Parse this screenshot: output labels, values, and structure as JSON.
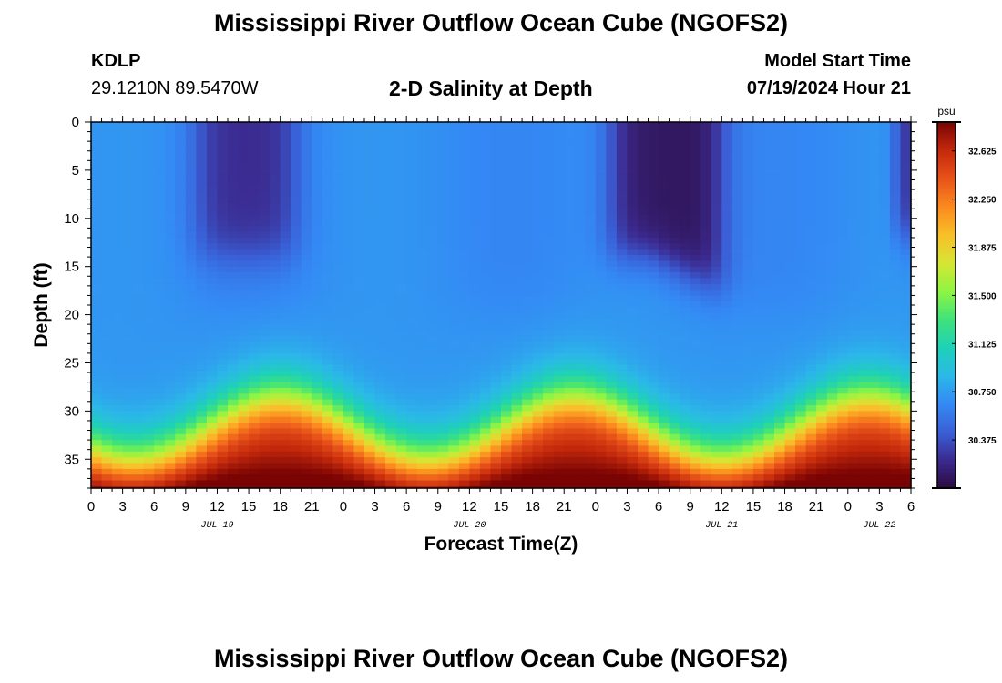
{
  "header": {
    "title": "Mississippi River Outflow Ocean Cube (NGOFS2)",
    "station_id": "KDLP",
    "station_coords": "29.1210N  89.5470W",
    "subtitle": "2-D Salinity at Depth",
    "model_start_label": "Model Start Time",
    "model_start_value": "07/19/2024 Hour 21"
  },
  "footer": {
    "title": "Mississippi River Outflow Ocean Cube (NGOFS2)"
  },
  "chart_data": {
    "type": "heatmap",
    "title": "2-D Salinity at Depth",
    "xlabel": "Forecast Time(Z)",
    "ylabel": "Depth (ft)",
    "x_tick_labels": [
      "0",
      "3",
      "6",
      "9",
      "12",
      "15",
      "18",
      "21",
      "0",
      "3",
      "6",
      "9",
      "12",
      "15",
      "18",
      "21",
      "0",
      "3",
      "6",
      "9",
      "12",
      "15",
      "18",
      "21",
      "0",
      "3",
      "6"
    ],
    "x_hours_since_jul19_00": [
      0,
      3,
      6,
      9,
      12,
      15,
      18,
      21,
      24,
      27,
      30,
      33,
      36,
      39,
      42,
      45,
      48,
      51,
      54,
      57,
      60,
      63,
      66,
      69,
      72,
      75,
      78
    ],
    "date_labels": [
      {
        "label": "JUL 19",
        "hour": 12
      },
      {
        "label": "JUL 20",
        "hour": 36
      },
      {
        "label": "JUL 21",
        "hour": 60
      },
      {
        "label": "JUL 22",
        "hour": 75
      }
    ],
    "xlim": [
      0,
      78
    ],
    "y_ticks": [
      0,
      5,
      10,
      15,
      20,
      25,
      30,
      35
    ],
    "ylim": [
      0,
      38
    ],
    "y_inverted": true,
    "colorbar": {
      "unit": "psu",
      "ticks": [
        "30.375",
        "30.750",
        "31.125",
        "31.500",
        "31.875",
        "32.250",
        "32.625"
      ],
      "range": [
        30.0,
        32.85
      ],
      "colors": [
        "#2b0a3d",
        "#3b2a8f",
        "#3a5fd6",
        "#3489f5",
        "#2bb8e8",
        "#1ed1b8",
        "#3fe27a",
        "#8ef544",
        "#d6e634",
        "#f8c02a",
        "#fb8a1e",
        "#e8531a",
        "#c52a0c",
        "#7a0403"
      ]
    },
    "description_fields": {
      "surface_fresh_events_hours": [
        [
          10,
          19
        ],
        [
          50,
          60
        ],
        [
          77,
          78
        ]
      ],
      "deep_saline_peaks_hours": [
        18,
        48,
        75
      ]
    }
  }
}
